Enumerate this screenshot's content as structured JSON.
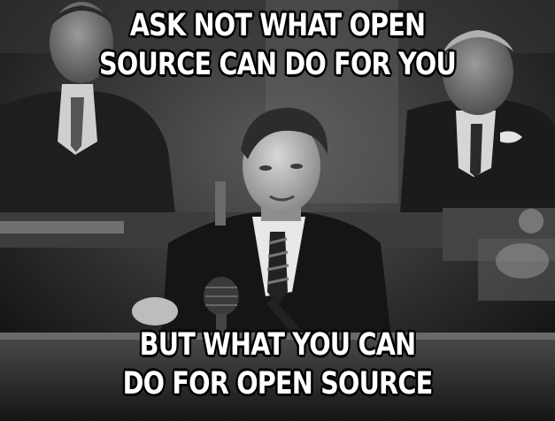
{
  "meme": {
    "top_text": [
      "ASK NOT WHAT OPEN",
      "SOURCE CAN DO FOR YOU"
    ],
    "bottom_text": [
      "BUT WHAT YOU CAN",
      "DO FOR OPEN SOURCE"
    ]
  }
}
